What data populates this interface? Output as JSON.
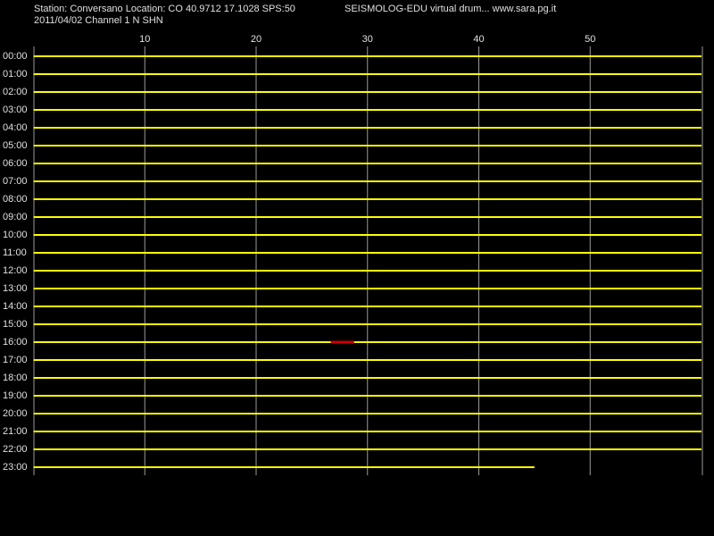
{
  "chart_data": {
    "type": "helicorder",
    "title": "Station: Conversano Location: CO 40.9712 17.1028 SPS:50",
    "subtitle": "SEISMOLOG-EDU virtual drum... www.sara.pg.it",
    "caption": "2011/04/02  Channel 1 N SHN",
    "categories": [
      "00:00",
      "01:00",
      "02:00",
      "03:00",
      "04:00",
      "05:00",
      "06:00",
      "07:00",
      "08:00",
      "09:00",
      "10:00",
      "11:00",
      "12:00",
      "13:00",
      "14:00",
      "15:00",
      "16:00",
      "17:00",
      "18:00",
      "19:00",
      "20:00",
      "21:00",
      "22:00",
      "23:00"
    ],
    "series": [
      {
        "color": "#ffff00",
        "values": [
          60,
          60,
          60,
          60,
          60,
          60,
          60,
          60,
          60,
          60,
          60,
          60,
          60,
          60,
          60,
          60,
          60,
          60,
          60,
          60,
          60,
          60,
          60,
          45
        ]
      }
    ],
    "highlight": {
      "color": "#cc0000",
      "row": 16,
      "start": 26.7,
      "end": 28.8
    },
    "xlim": [
      0,
      60
    ],
    "xticks": [
      10,
      20,
      30,
      40,
      50
    ],
    "grid": true,
    "grid_color": "#9a9a9a"
  }
}
